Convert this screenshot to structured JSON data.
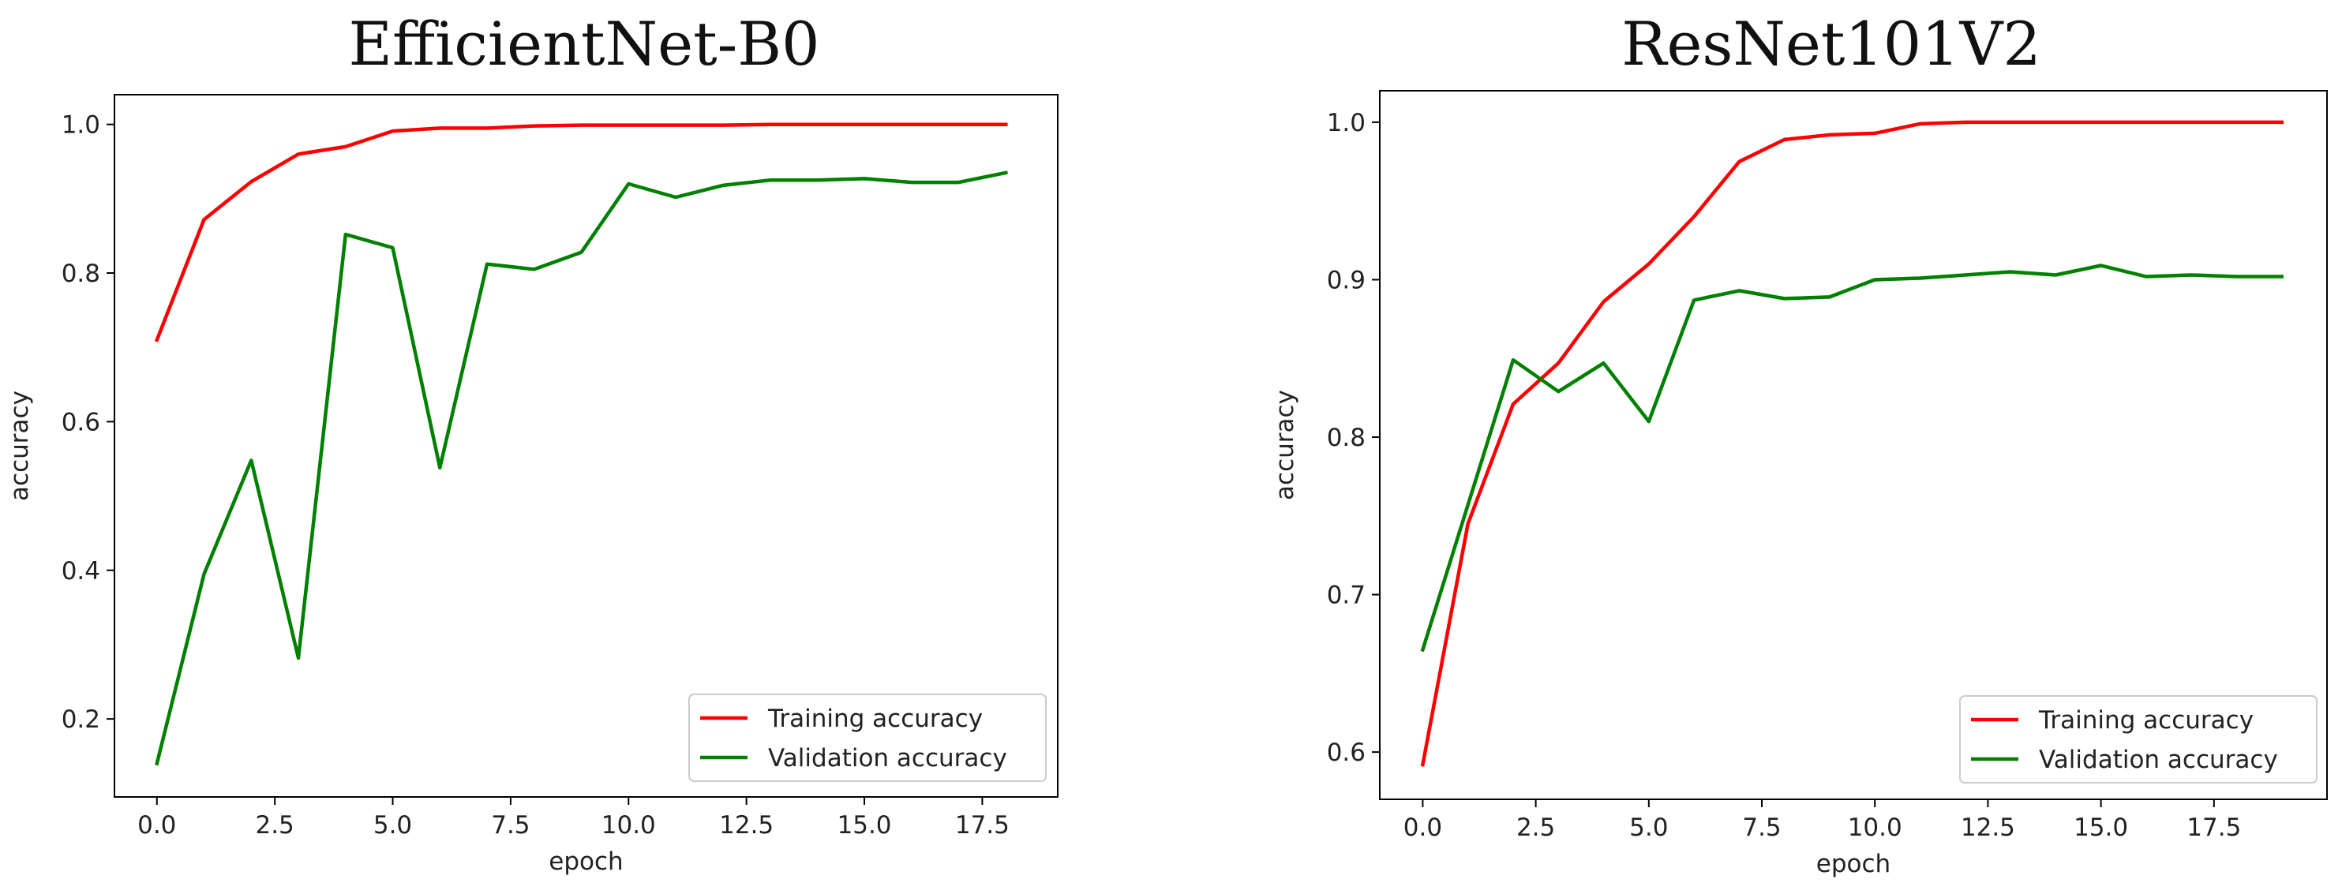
{
  "chart_data": [
    {
      "type": "line",
      "title": "EfficientNet-B0",
      "xlabel": "epoch",
      "ylabel": "accuracy",
      "xlim": [
        -0.9,
        19.1
      ],
      "ylim": [
        0.095,
        1.04
      ],
      "xticks": [
        0,
        2.5,
        5,
        7.5,
        10,
        12.5,
        15,
        17.5
      ],
      "xtick_labels": [
        "0.0",
        "2.5",
        "5.0",
        "7.5",
        "10.0",
        "12.5",
        "15.0",
        "17.5"
      ],
      "yticks": [
        0.2,
        0.4,
        0.6,
        0.8,
        1.0
      ],
      "ytick_labels": [
        "0.2",
        "0.4",
        "0.6",
        "0.8",
        "1.0"
      ],
      "grid": false,
      "legend_position": "lower-right",
      "x": [
        0,
        1,
        2,
        3,
        4,
        5,
        6,
        7,
        8,
        9,
        10,
        11,
        12,
        13,
        14,
        15,
        16,
        17,
        18
      ],
      "series": [
        {
          "name": "Training accuracy",
          "color": "#ff0000",
          "values": [
            0.71,
            0.872,
            0.923,
            0.96,
            0.97,
            0.991,
            0.995,
            0.995,
            0.998,
            0.999,
            0.999,
            0.999,
            0.999,
            1.0,
            1.0,
            1.0,
            1.0,
            1.0,
            1.0
          ]
        },
        {
          "name": "Validation accuracy",
          "color": "#008000",
          "values": [
            0.14,
            0.395,
            0.548,
            0.282,
            0.852,
            0.834,
            0.538,
            0.812,
            0.805,
            0.828,
            0.92,
            0.902,
            0.918,
            0.925,
            0.925,
            0.927,
            0.922,
            0.922,
            0.935
          ]
        }
      ]
    },
    {
      "type": "line",
      "title": "ResNet101V2",
      "xlabel": "epoch",
      "ylabel": "accuracy",
      "xlim": [
        -0.95,
        20.0
      ],
      "ylim": [
        0.57,
        1.02
      ],
      "xticks": [
        0,
        2.5,
        5,
        7.5,
        10,
        12.5,
        15,
        17.5
      ],
      "xtick_labels": [
        "0.0",
        "2.5",
        "5.0",
        "7.5",
        "10.0",
        "12.5",
        "15.0",
        "17.5"
      ],
      "yticks": [
        0.6,
        0.7,
        0.8,
        0.9,
        1.0
      ],
      "ytick_labels": [
        "0.6",
        "0.7",
        "0.8",
        "0.9",
        "1.0"
      ],
      "grid": false,
      "legend_position": "lower-right",
      "x": [
        0,
        1,
        2,
        3,
        4,
        5,
        6,
        7,
        8,
        9,
        10,
        11,
        12,
        13,
        14,
        15,
        16,
        17,
        18,
        19
      ],
      "series": [
        {
          "name": "Training accuracy",
          "color": "#ff0000",
          "values": [
            0.592,
            0.745,
            0.821,
            0.847,
            0.886,
            0.91,
            0.94,
            0.975,
            0.989,
            0.992,
            0.993,
            0.999,
            1.0,
            1.0,
            1.0,
            1.0,
            1.0,
            1.0,
            1.0,
            1.0
          ]
        },
        {
          "name": "Validation accuracy",
          "color": "#008000",
          "values": [
            0.665,
            0.757,
            0.849,
            0.829,
            0.847,
            0.81,
            0.887,
            0.893,
            0.888,
            0.889,
            0.9,
            0.901,
            0.903,
            0.905,
            0.903,
            0.909,
            0.902,
            0.903,
            0.902,
            0.902
          ]
        }
      ]
    }
  ]
}
